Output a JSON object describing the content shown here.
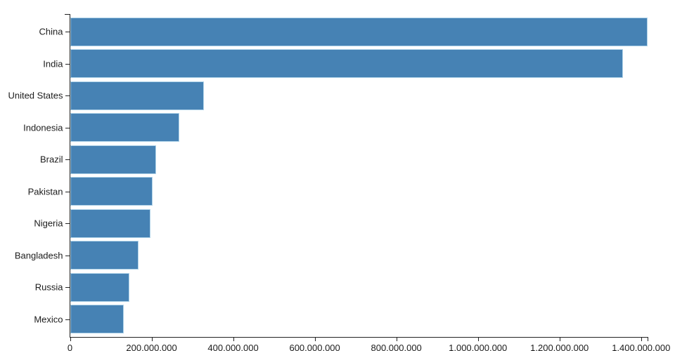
{
  "chart": {
    "background_color": "#ffffff",
    "bar_fill_color": "#4682b4",
    "bar_stroke_color": "#add8e6",
    "axis_color": "#222222",
    "label_color": "#1c1c1c"
  },
  "chart_data": {
    "type": "bar",
    "orientation": "horizontal",
    "title": "",
    "xlabel": "",
    "ylabel": "",
    "grid": false,
    "legend": "none",
    "categories": [
      "China",
      "India",
      "United States",
      "Indonesia",
      "Brazil",
      "Pakistan",
      "Nigeria",
      "Bangladesh",
      "Russia",
      "Mexico"
    ],
    "values": [
      1415045928,
      1354051854,
      326766748,
      266794980,
      210867954,
      200813818,
      195875237,
      166368149,
      143964709,
      130759074
    ],
    "xlim": [
      0,
      1415045928
    ],
    "x_ticks": [
      {
        "value": 0,
        "label": "0"
      },
      {
        "value": 200000000,
        "label": "200,000,000"
      },
      {
        "value": 400000000,
        "label": "400,000,000"
      },
      {
        "value": 600000000,
        "label": "600,000,000"
      },
      {
        "value": 800000000,
        "label": "800,000,000"
      },
      {
        "value": 1000000000,
        "label": "1,000,000,000"
      },
      {
        "value": 1200000000,
        "label": "1,200,000,000"
      },
      {
        "value": 1400000000,
        "label": "1,400,000,000"
      }
    ]
  }
}
